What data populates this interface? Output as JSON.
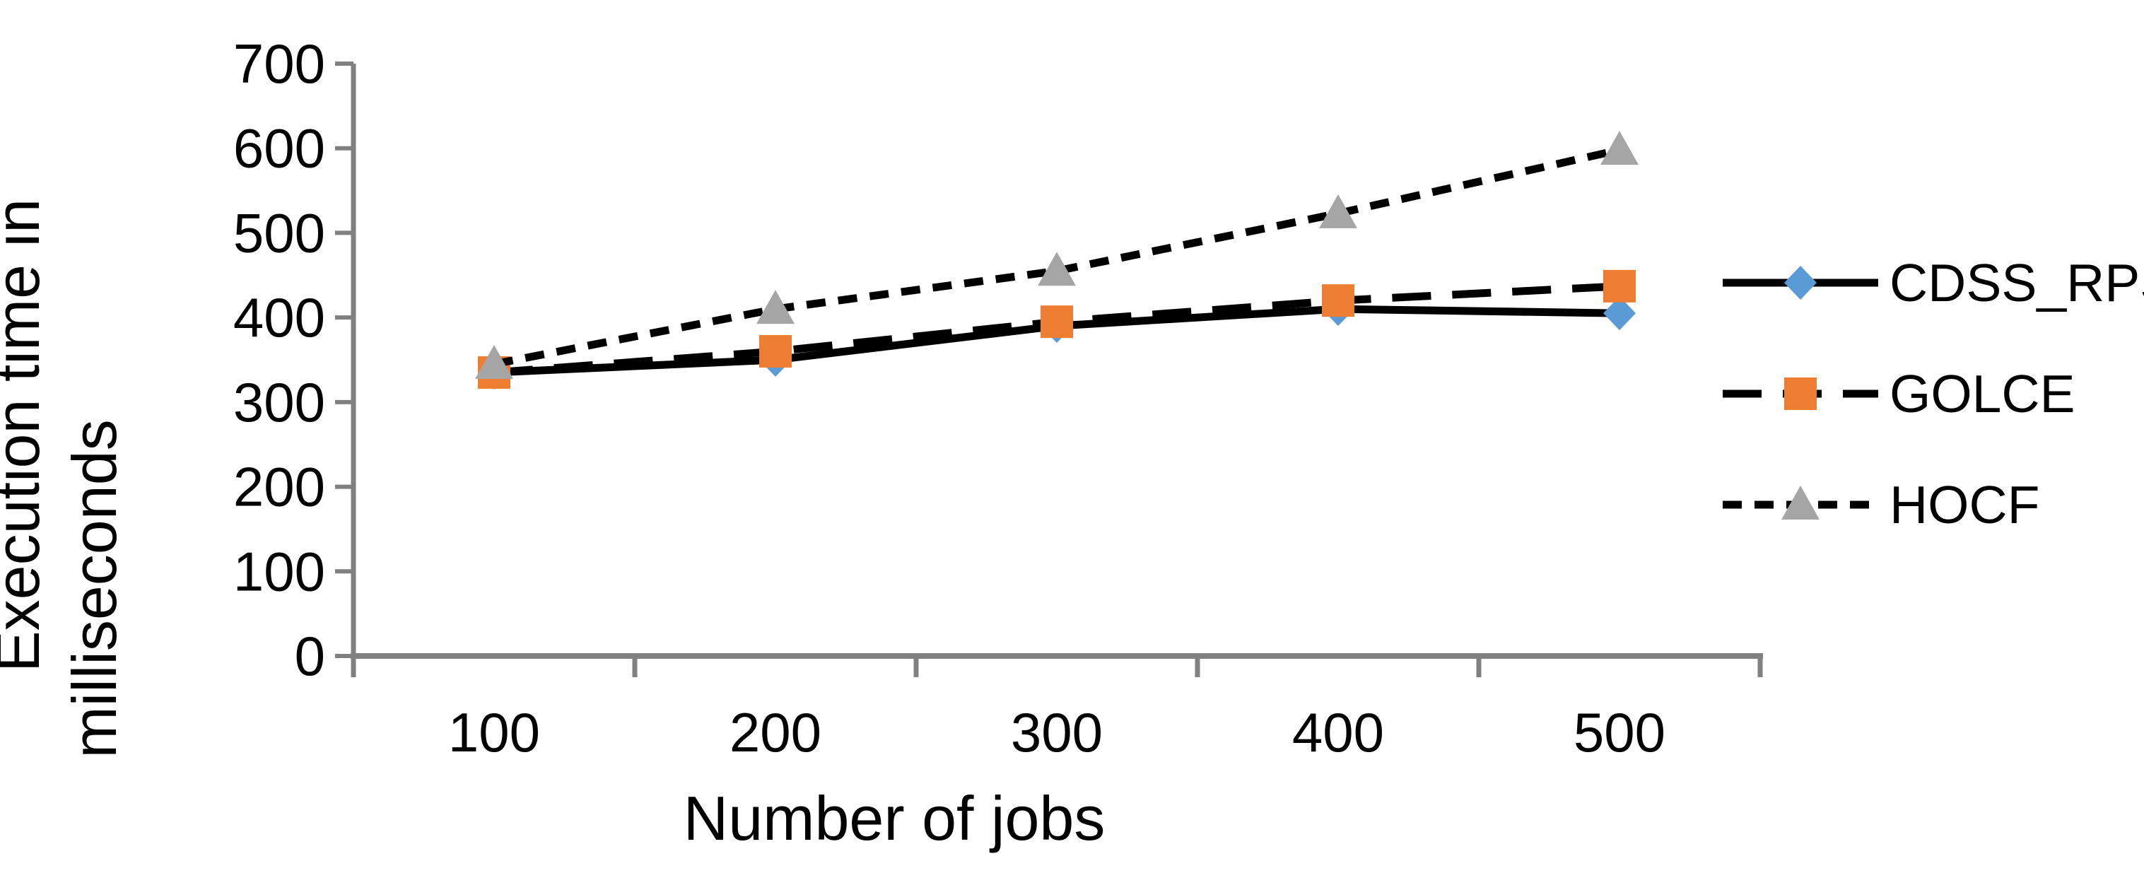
{
  "chart_data": {
    "type": "line",
    "title": "",
    "xlabel": "Number of jobs",
    "ylabel": "Execution time in milliseconds",
    "ylabel_lines": [
      "Execution time in",
      "milliseconds"
    ],
    "categories": [
      100,
      200,
      300,
      400,
      500
    ],
    "yticks": [
      0,
      100,
      200,
      300,
      400,
      500,
      600,
      700
    ],
    "ylim": [
      0,
      700
    ],
    "grid": false,
    "legend_position": "right",
    "axis_color": "#808080",
    "text_color": "#000000",
    "background": "#FFFFFF",
    "series": [
      {
        "name": "CDSS_RPS",
        "values": [
          335,
          350,
          390,
          410,
          405
        ],
        "line_color": "#000000",
        "line_style": "solid",
        "marker": "diamond",
        "marker_color": "#5B9BD5"
      },
      {
        "name": "GOLCE",
        "values": [
          335,
          360,
          395,
          420,
          437
        ],
        "line_color": "#000000",
        "line_style": "long-dash",
        "marker": "square",
        "marker_color": "#ED7D31"
      },
      {
        "name": "HOCF",
        "values": [
          345,
          410,
          455,
          523,
          598
        ],
        "line_color": "#000000",
        "line_style": "short-dash",
        "marker": "triangle",
        "marker_color": "#A5A5A5"
      }
    ]
  }
}
